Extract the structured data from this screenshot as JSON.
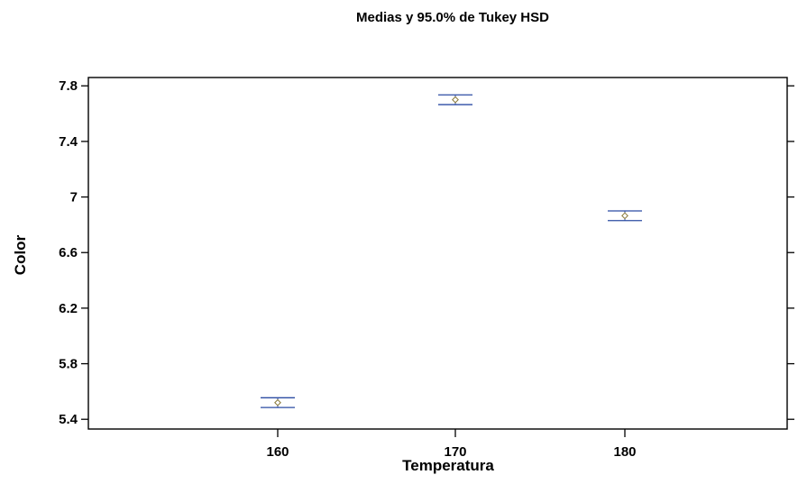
{
  "chart_data": {
    "type": "scatter",
    "title": "Medias y 95.0% de Tukey HSD",
    "xlabel": "Temperatura",
    "ylabel": "Color",
    "categories": [
      "160",
      "170",
      "180"
    ],
    "series": [
      {
        "means": [
          5.52,
          7.7,
          6.865
        ],
        "lower": [
          5.485,
          7.665,
          6.83
        ],
        "upper": [
          5.555,
          7.735,
          6.9
        ]
      }
    ],
    "ylim": [
      5.33,
      7.86
    ],
    "yticks": [
      5.4,
      5.8,
      6.2,
      6.6,
      7.0,
      7.4,
      7.8
    ],
    "ytick_labels": [
      "5.4",
      "5.8",
      "6.2",
      "6.6",
      "7",
      "7.4",
      "7.8"
    ],
    "grid": false,
    "colors": {
      "interval": "#2b4ba3",
      "mean_marker": "#8a7a3a",
      "frame": "#000000"
    }
  }
}
